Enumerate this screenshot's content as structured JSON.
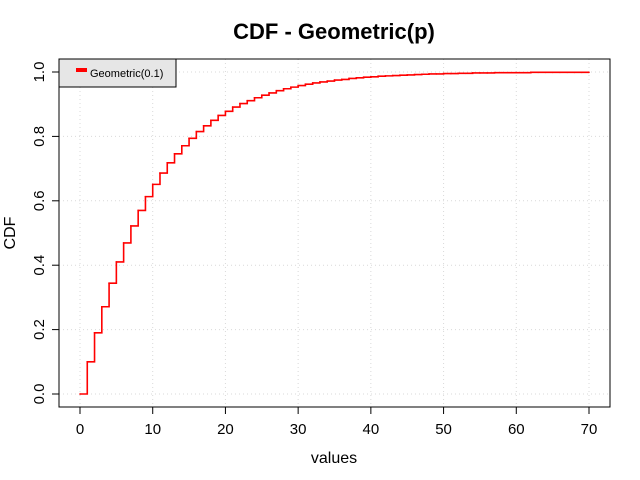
{
  "chart_data": {
    "type": "line",
    "step": true,
    "title": "CDF - Geometric(p)",
    "xlabel": "values",
    "ylabel": "CDF",
    "xlim": [
      0,
      70
    ],
    "ylim": [
      0,
      1
    ],
    "x_ticks": [
      0,
      10,
      20,
      30,
      40,
      50,
      60,
      70
    ],
    "y_ticks": [
      0.0,
      0.2,
      0.4,
      0.6,
      0.8,
      1.0
    ],
    "x_tick_labels": [
      "0",
      "10",
      "20",
      "30",
      "40",
      "50",
      "60",
      "70"
    ],
    "y_tick_labels": [
      "0.0",
      "0.2",
      "0.4",
      "0.6",
      "0.8",
      "1.0"
    ],
    "grid": true,
    "legend_position": "top-left",
    "series": [
      {
        "name": "Geometric(0.1)",
        "color": "#ff0000",
        "x": [
          0,
          1,
          2,
          3,
          4,
          5,
          6,
          7,
          8,
          9,
          10,
          11,
          12,
          13,
          14,
          15,
          16,
          17,
          18,
          19,
          20,
          21,
          22,
          23,
          24,
          25,
          26,
          27,
          28,
          29,
          30,
          31,
          32,
          33,
          34,
          35,
          36,
          37,
          38,
          39,
          40,
          41,
          42,
          43,
          44,
          45,
          46,
          47,
          48,
          49,
          50,
          51,
          52,
          53,
          54,
          55,
          56,
          57,
          58,
          59,
          60,
          61,
          62,
          63,
          64,
          65,
          66,
          67,
          68,
          69,
          70
        ],
        "y": [
          0.0,
          0.1,
          0.19,
          0.271,
          0.344,
          0.41,
          0.469,
          0.522,
          0.57,
          0.613,
          0.651,
          0.686,
          0.718,
          0.746,
          0.771,
          0.794,
          0.815,
          0.833,
          0.85,
          0.865,
          0.878,
          0.891,
          0.902,
          0.911,
          0.92,
          0.928,
          0.935,
          0.942,
          0.948,
          0.953,
          0.958,
          0.962,
          0.966,
          0.969,
          0.972,
          0.975,
          0.977,
          0.98,
          0.982,
          0.984,
          0.985,
          0.987,
          0.988,
          0.989,
          0.99,
          0.991,
          0.992,
          0.993,
          0.994,
          0.994,
          0.995,
          0.995,
          0.996,
          0.996,
          0.997,
          0.997,
          0.997,
          0.998,
          0.998,
          0.998,
          0.998,
          0.998,
          0.999,
          0.999,
          0.999,
          0.999,
          0.999,
          0.999,
          0.999,
          0.999,
          0.999
        ]
      }
    ]
  }
}
